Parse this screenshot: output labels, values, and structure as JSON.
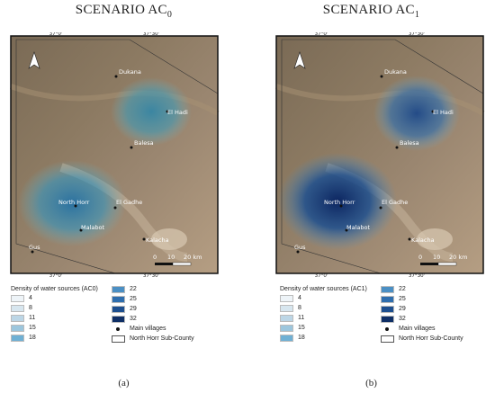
{
  "panels": [
    {
      "id": "a",
      "title_main": "SCENARIO AC",
      "title_sub": "0",
      "caption": "(a)",
      "legend_title": "Density of water sources (AC0)",
      "hotspots": [
        {
          "name": "el-hadi-cluster",
          "intensity": 0.55
        },
        {
          "name": "north-horr-cluster",
          "intensity": 0.7
        }
      ]
    },
    {
      "id": "b",
      "title_main": "SCENARIO AC",
      "title_sub": "1",
      "caption": "(b)",
      "legend_title": "Density of water sources (AC1)",
      "hotspots": [
        {
          "name": "el-hadi-cluster",
          "intensity": 0.75
        },
        {
          "name": "north-horr-cluster",
          "intensity": 1.0
        }
      ]
    }
  ],
  "map": {
    "villages": [
      "Dukana",
      "El Hadi",
      "Balesa",
      "North Horr",
      "El Gadhe",
      "Malabot",
      "Kalacha",
      "Gus"
    ],
    "top_ticks": [
      "37°0'",
      "37°30'"
    ],
    "bottom_ticks": [
      "37°0'",
      "37°30'"
    ],
    "left_ticks": [
      "4°0'",
      "3°30'",
      "3°0'"
    ],
    "right_ticks": [
      "4°0'",
      "3°30'",
      "3°0'"
    ],
    "scale_labels": [
      "0",
      "10",
      "20 km"
    ],
    "north_arrow": "north-arrow-icon"
  },
  "legend": {
    "classes": [
      {
        "value": "4",
        "color": "#eef4f8"
      },
      {
        "value": "8",
        "color": "#d7e6ef"
      },
      {
        "value": "11",
        "color": "#bcd6e6"
      },
      {
        "value": "15",
        "color": "#9cc6dd"
      },
      {
        "value": "18",
        "color": "#6fb0d4"
      },
      {
        "value": "22",
        "color": "#4b8fc4"
      },
      {
        "value": "25",
        "color": "#2f6eae"
      },
      {
        "value": "29",
        "color": "#1d4f8f"
      },
      {
        "value": "32",
        "color": "#0f2f66"
      }
    ],
    "villages_label": "Main villages",
    "boundary_label": "North Horr Sub-County"
  }
}
